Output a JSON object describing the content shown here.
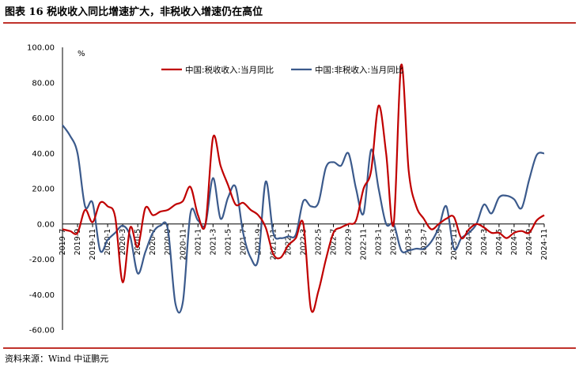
{
  "figure": {
    "title": "图表 16   税收收入同比增速扩大，非税收入增速仍在高位",
    "source": "资料来源：Wind   中证鹏元"
  },
  "chart_data": {
    "type": "line",
    "unit_label": "%",
    "ylim": [
      -60,
      100
    ],
    "yticks": [
      "100.00",
      "80.00",
      "60.00",
      "40.00",
      "20.00",
      "0.00",
      "-20.00",
      "-40.00",
      "-60.00"
    ],
    "grid": false,
    "legend_position": "top",
    "x_tick_labels": [
      "2019-7",
      "2019-9",
      "2019-11",
      "2020-1",
      "2020-3",
      "2020-5",
      "2020-7",
      "2020-9",
      "2020-11",
      "2021-1",
      "2021-3",
      "2021-5",
      "2021-7",
      "2021-9",
      "2021-11",
      "2022-1",
      "2022-3",
      "2022-5",
      "2022-7",
      "2022-9",
      "2022-11",
      "2023-1",
      "2023-3",
      "2023-5",
      "2023-7",
      "2023-9",
      "2023-11",
      "2024-1",
      "2024-3",
      "2024-5",
      "2024-7",
      "2024-9",
      "2024-11"
    ],
    "x": [
      "2019-7",
      "2019-8",
      "2019-9",
      "2019-10",
      "2019-11",
      "2019-12",
      "2020-1",
      "2020-2",
      "2020-3",
      "2020-4",
      "2020-5",
      "2020-6",
      "2020-7",
      "2020-8",
      "2020-9",
      "2020-10",
      "2020-11",
      "2020-12",
      "2021-1",
      "2021-2",
      "2021-3",
      "2021-4",
      "2021-5",
      "2021-6",
      "2021-7",
      "2021-8",
      "2021-9",
      "2021-10",
      "2021-11",
      "2021-12",
      "2022-1",
      "2022-2",
      "2022-3",
      "2022-4",
      "2022-5",
      "2022-6",
      "2022-7",
      "2022-8",
      "2022-9",
      "2022-10",
      "2022-11",
      "2022-12",
      "2023-1",
      "2023-2",
      "2023-3",
      "2023-4",
      "2023-5",
      "2023-6",
      "2023-7",
      "2023-8",
      "2023-9",
      "2023-10",
      "2023-11",
      "2023-12",
      "2024-1",
      "2024-2",
      "2024-3",
      "2024-4",
      "2024-5",
      "2024-6",
      "2024-7",
      "2024-8",
      "2024-9",
      "2024-10",
      "2024-11"
    ],
    "series": [
      {
        "name": "中国:税收收入:当月同比",
        "color": "#c00000",
        "values": [
          -3,
          -4,
          -5,
          8,
          1,
          12,
          10,
          4,
          -33,
          -2,
          -13,
          9,
          5,
          7,
          8,
          11,
          13,
          21,
          5,
          0,
          49,
          33,
          22,
          11,
          12,
          8,
          5,
          -2,
          -17,
          -19,
          -12,
          -8,
          0,
          -48,
          -38,
          -20,
          -5,
          -2,
          0,
          2,
          20,
          30,
          67,
          40,
          0,
          90,
          30,
          10,
          3,
          -3,
          0,
          3,
          4,
          -8,
          -3,
          0,
          -2,
          -5,
          -5,
          -8,
          -5,
          -4,
          -5,
          2,
          5
        ]
      },
      {
        "name": "中国:非税收入:当月同比",
        "color": "#3b5a8c",
        "values": [
          56,
          50,
          40,
          10,
          12,
          -15,
          -9,
          -5,
          -1,
          -7,
          -28,
          -16,
          -5,
          -1,
          -3,
          -45,
          -44,
          6,
          2,
          0,
          26,
          3,
          15,
          21,
          -5,
          -19,
          -20,
          24,
          -5,
          -8,
          -7,
          -6,
          13,
          10,
          12,
          32,
          35,
          33,
          40,
          20,
          6,
          42,
          20,
          0,
          0,
          -15,
          -15,
          -14,
          -14,
          -10,
          -2,
          10,
          -14,
          -8,
          -5,
          0,
          11,
          6,
          15,
          16,
          14,
          9,
          25,
          39,
          40
        ]
      }
    ]
  }
}
